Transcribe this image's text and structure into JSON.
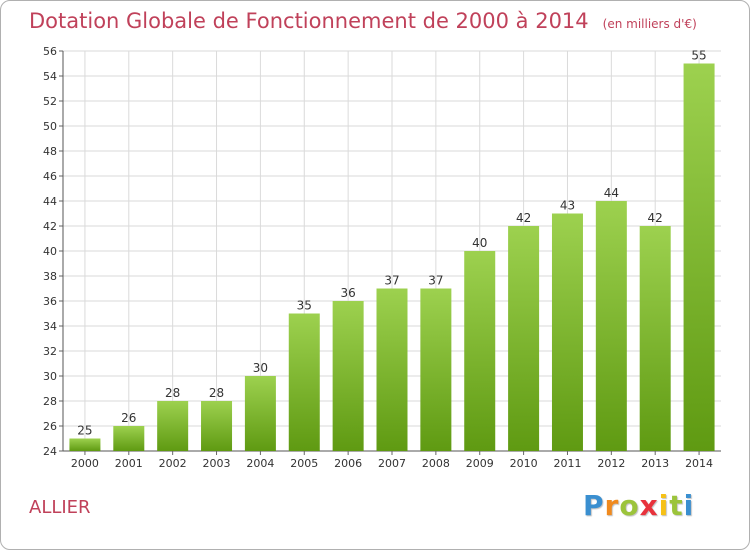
{
  "chart_data": {
    "type": "bar",
    "title": "Dotation Globale de Fonctionnement de 2000 à 2014",
    "subtitle": "(en milliers d'€)",
    "categories": [
      "2000",
      "2001",
      "2002",
      "2003",
      "2004",
      "2005",
      "2006",
      "2007",
      "2008",
      "2009",
      "2010",
      "2011",
      "2012",
      "2013",
      "2014"
    ],
    "values": [
      25,
      26,
      28,
      28,
      30,
      35,
      36,
      37,
      37,
      40,
      42,
      43,
      44,
      42,
      55
    ],
    "ylim": [
      24,
      56
    ],
    "yticks": [
      24,
      26,
      28,
      30,
      32,
      34,
      36,
      38,
      40,
      42,
      44,
      46,
      48,
      50,
      52,
      54,
      56
    ],
    "grid": true,
    "bar_color_light": "#9dd14f",
    "bar_color_dark": "#5f9a12"
  },
  "region_label": "ALLIER",
  "logo": {
    "letters": [
      "P",
      "r",
      "o",
      "x",
      "i",
      "t",
      "i"
    ],
    "colors": [
      "#3a8fd0",
      "#f08a1e",
      "#9cc43b",
      "#e8323c",
      "#f6c116",
      "#9cc43b",
      "#3a8fd0"
    ]
  }
}
